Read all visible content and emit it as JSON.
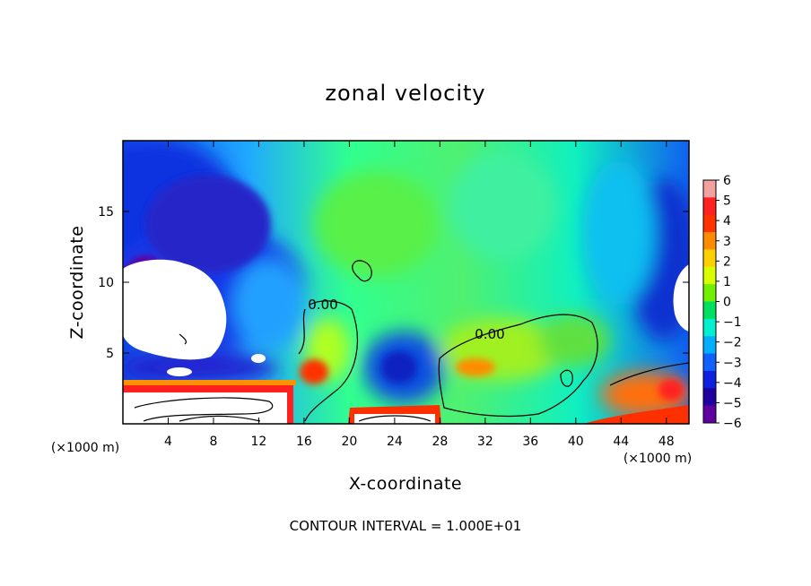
{
  "chart_data": {
    "type": "heatmap",
    "title": "zonal velocity",
    "xlabel": "X-coordinate",
    "ylabel": "Z-coordinate",
    "x_unit_label": "(×1000 m)",
    "x_unit_label_right": "(×1000 m)",
    "xlim": [
      0,
      50
    ],
    "ylim": [
      0,
      20
    ],
    "x_ticks": [
      4,
      8,
      12,
      16,
      20,
      24,
      28,
      32,
      36,
      40,
      44,
      48
    ],
    "y_ticks": [
      5,
      10,
      15
    ],
    "colorbar": {
      "levels": [
        6,
        5,
        4,
        3,
        2,
        1,
        0,
        -1,
        -2,
        -3,
        -4,
        -5,
        -6
      ],
      "labels": [
        "6",
        "5",
        "4",
        "3",
        "2",
        "1",
        "0",
        "−1",
        "−2",
        "−3",
        "−4",
        "−5",
        "−6"
      ],
      "colors": [
        "#f4a0a0",
        "#ff2020",
        "#ff3300",
        "#ff8c00",
        "#ffd000",
        "#d8ff00",
        "#70f000",
        "#00e060",
        "#00f0d0",
        "#00b0ff",
        "#1060ff",
        "#1020e0",
        "#2000a0",
        "#6000a0"
      ]
    },
    "contour_labels": [
      "0.00",
      "0.00"
    ],
    "contour_note": "CONTOUR INTERVAL = 1.000E+01"
  }
}
